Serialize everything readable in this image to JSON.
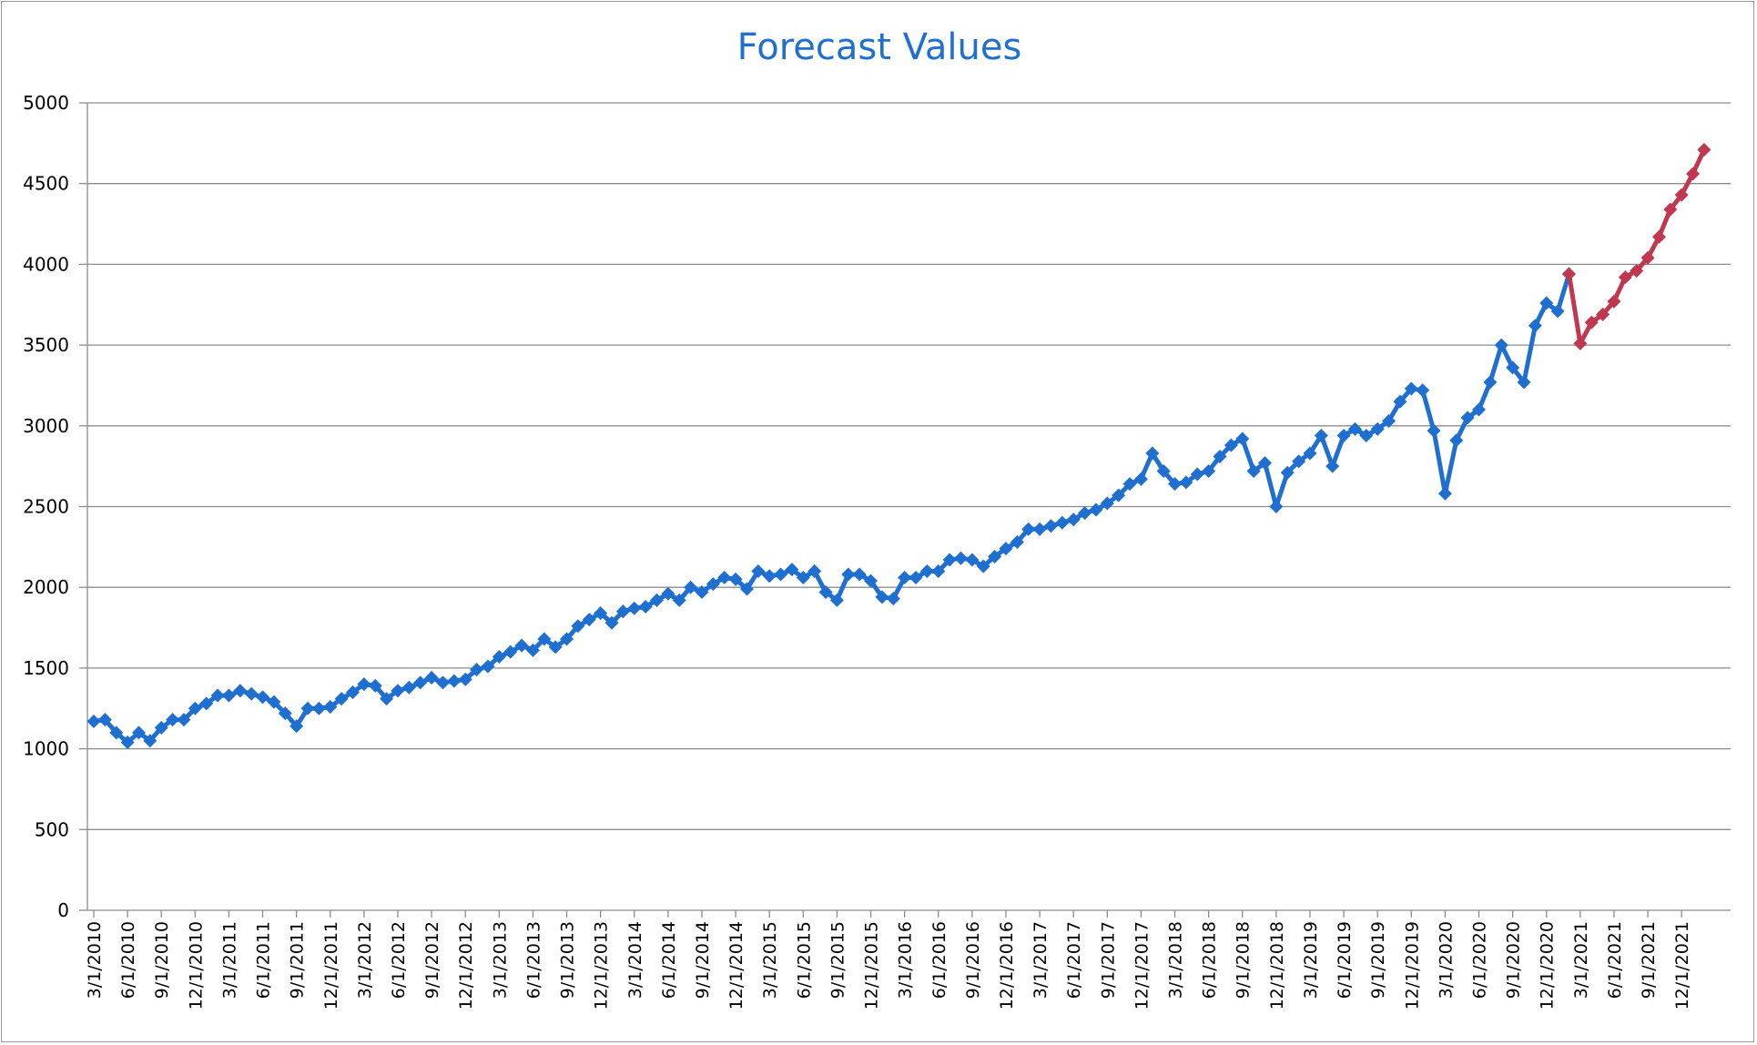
{
  "chart_data": {
    "type": "line",
    "title": "Forecast Values",
    "xlabel": "",
    "ylabel": "",
    "ylim": [
      0,
      5000
    ],
    "yticks": [
      "0",
      "500",
      "1000",
      "1500",
      "2000",
      "2500",
      "3000",
      "3500",
      "4000",
      "4500",
      "5000"
    ],
    "grid": true,
    "legend": "none",
    "x_start": "3/1/2010",
    "x_frequency": "monthly",
    "xtick_labels": [
      "3/1/2010",
      "6/1/2010",
      "9/1/2010",
      "12/1/2010",
      "3/1/2011",
      "6/1/2011",
      "9/1/2011",
      "12/1/2011",
      "3/1/2012",
      "6/1/2012",
      "9/1/2012",
      "12/1/2012",
      "3/1/2013",
      "6/1/2013",
      "9/1/2013",
      "12/1/2013",
      "3/1/2014",
      "6/1/2014",
      "9/1/2014",
      "12/1/2014",
      "3/1/2015",
      "6/1/2015",
      "9/1/2015",
      "12/1/2015",
      "3/1/2016",
      "6/1/2016",
      "9/1/2016",
      "12/1/2016",
      "3/1/2017",
      "6/1/2017",
      "9/1/2017",
      "12/1/2017",
      "3/1/2018",
      "6/1/2018",
      "9/1/2018",
      "12/1/2018",
      "3/1/2019",
      "6/1/2019",
      "9/1/2019",
      "12/1/2019",
      "3/1/2020",
      "6/1/2020",
      "9/1/2020",
      "12/1/2020",
      "3/1/2021",
      "6/1/2021",
      "9/1/2021",
      "12/1/2021"
    ],
    "series": [
      {
        "color": "#1f6fd1",
        "values": [
          1170,
          1180,
          1100,
          1040,
          1100,
          1050,
          1130,
          1180,
          1180,
          1250,
          1280,
          1330,
          1330,
          1360,
          1340,
          1320,
          1290,
          1220,
          1140,
          1250,
          1250,
          1260,
          1310,
          1350,
          1400,
          1390,
          1310,
          1360,
          1380,
          1410,
          1440,
          1410,
          1420,
          1430,
          1490,
          1510,
          1570,
          1600,
          1640,
          1610,
          1680,
          1630,
          1680,
          1760,
          1800,
          1840,
          1780,
          1850,
          1870,
          1880,
          1920,
          1960,
          1920,
          2000,
          1970,
          2020,
          2060,
          2050,
          1990,
          2100,
          2070,
          2080,
          2110,
          2060,
          2100,
          1970,
          1920,
          2080,
          2080,
          2040,
          1940,
          1930,
          2060,
          2060,
          2100,
          2100,
          2170,
          2180,
          2170,
          2130,
          2190,
          2240,
          2280,
          2360,
          2360,
          2380,
          2400,
          2420,
          2460,
          2480,
          2520,
          2570,
          2640,
          2670,
          2830,
          2720,
          2640,
          2650,
          2700,
          2720,
          2810,
          2880,
          2920,
          2720,
          2770,
          2500,
          2710,
          2780,
          2830,
          2940,
          2750,
          2940,
          2980,
          2940,
          2980,
          3030,
          3150,
          3230,
          3220,
          2970,
          2580,
          2910,
          3050,
          3100,
          3270,
          3500,
          3360,
          3270,
          3620,
          3760,
          3710,
          3940
        ]
      },
      {
        "color": "#c0384f",
        "values": [
          3940,
          3510,
          3640,
          3690,
          3770,
          3920,
          3960,
          4040,
          4170,
          4340,
          4430,
          4560,
          4710
        ]
      }
    ]
  }
}
